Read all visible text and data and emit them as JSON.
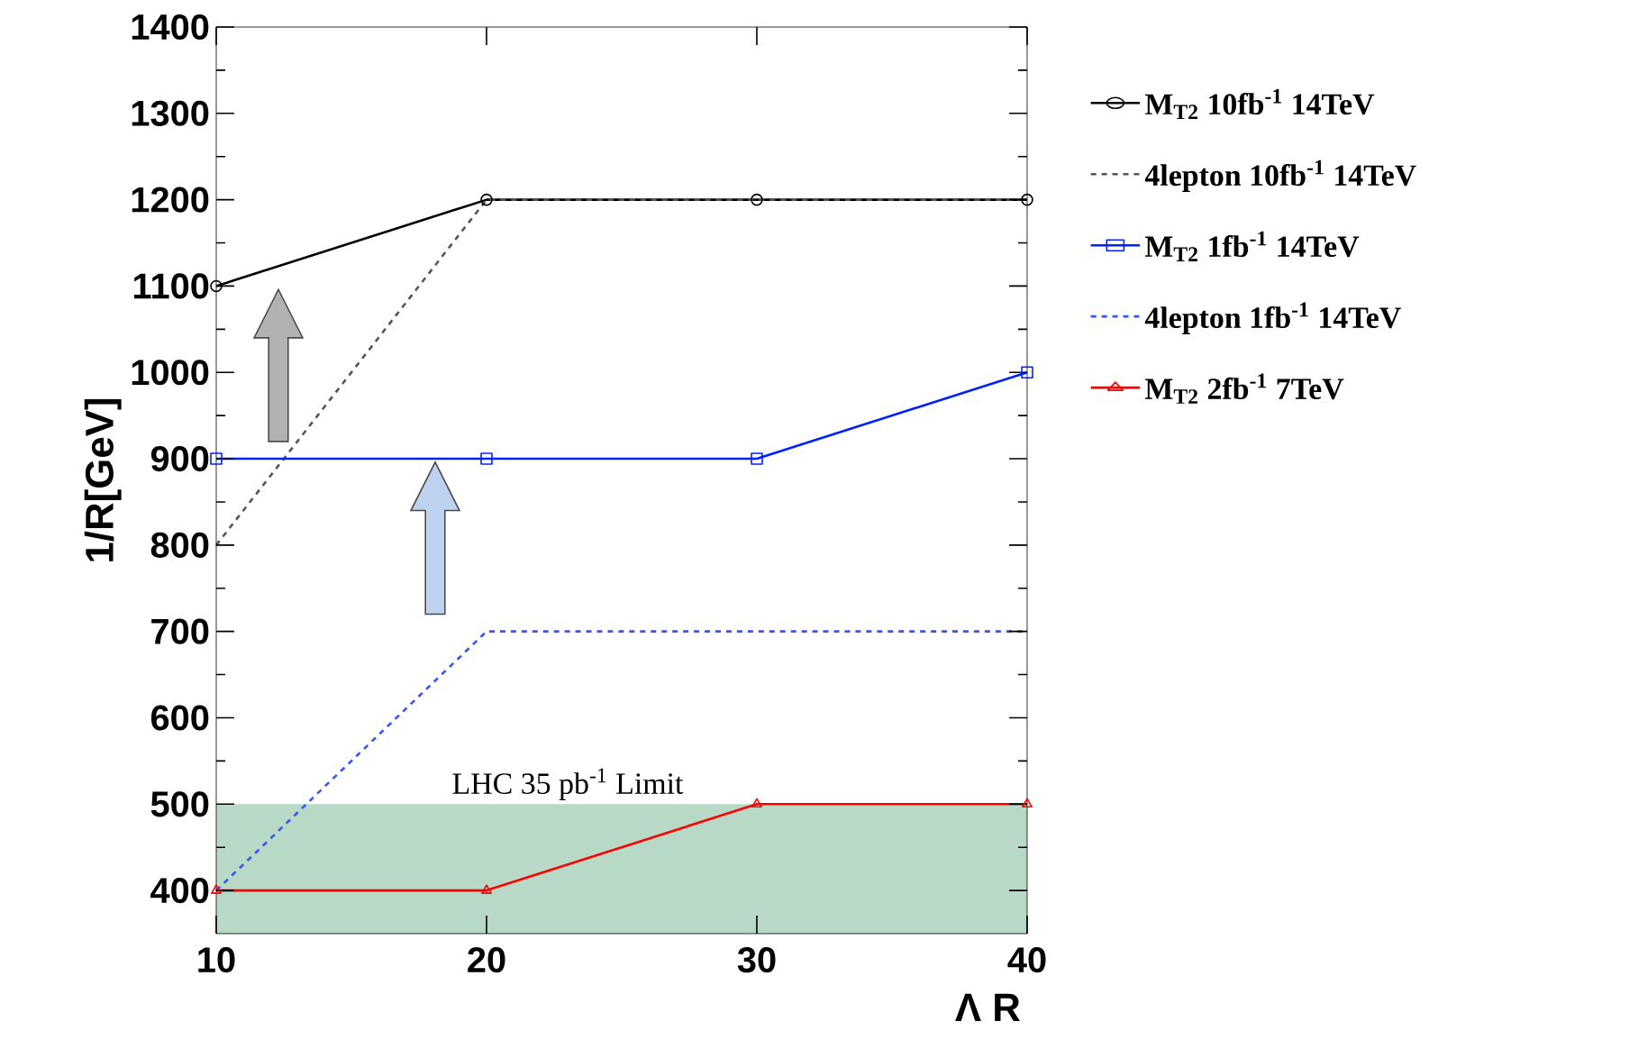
{
  "chart_data": {
    "type": "line",
    "xlabel": "Λ R",
    "ylabel": "1/R[GeV]",
    "x": [
      10,
      20,
      30,
      40
    ],
    "xlim": [
      10,
      40
    ],
    "xticks": [
      10,
      20,
      30,
      40
    ],
    "ylim": [
      350,
      1400
    ],
    "yticks": [
      400,
      500,
      600,
      700,
      800,
      900,
      1000,
      1100,
      1200,
      1300,
      1400
    ],
    "series": [
      {
        "name": "M$_{T2}$ 10fb$^{-1}$ 14TeV",
        "color": "#000000",
        "values": [
          1100,
          1200,
          1200,
          1200
        ],
        "marker": "circle",
        "line_style": "solid"
      },
      {
        "name": "4lepton 10fb$^{-1}$ 14TeV",
        "color": "#555555",
        "values": [
          800,
          1200,
          1200,
          1200
        ],
        "marker": "none",
        "line_style": "dashed"
      },
      {
        "name": "M$_{T2}$ 1fb$^{-1}$ 14TeV",
        "color": "#0022ff",
        "values": [
          900,
          900,
          900,
          1000
        ],
        "marker": "square",
        "line_style": "solid"
      },
      {
        "name": "4lepton 1fb$^{-1}$ 14TeV",
        "color": "#3355ff",
        "values": [
          400,
          700,
          700,
          700
        ],
        "marker": "none",
        "line_style": "dashed"
      },
      {
        "name": "M$_{T2}$ 2fb$^{-1}$ 7TeV",
        "color": "#ff0000",
        "values": [
          400,
          400,
          500,
          500
        ],
        "marker": "triangle",
        "line_style": "solid"
      }
    ],
    "bands": [
      {
        "axis": "y",
        "from": 350,
        "to": 500,
        "label": "LHC 35 pb$^{-1}$ Limit",
        "color": "#b8d9c6"
      }
    ],
    "legend": "right",
    "grid": false
  }
}
